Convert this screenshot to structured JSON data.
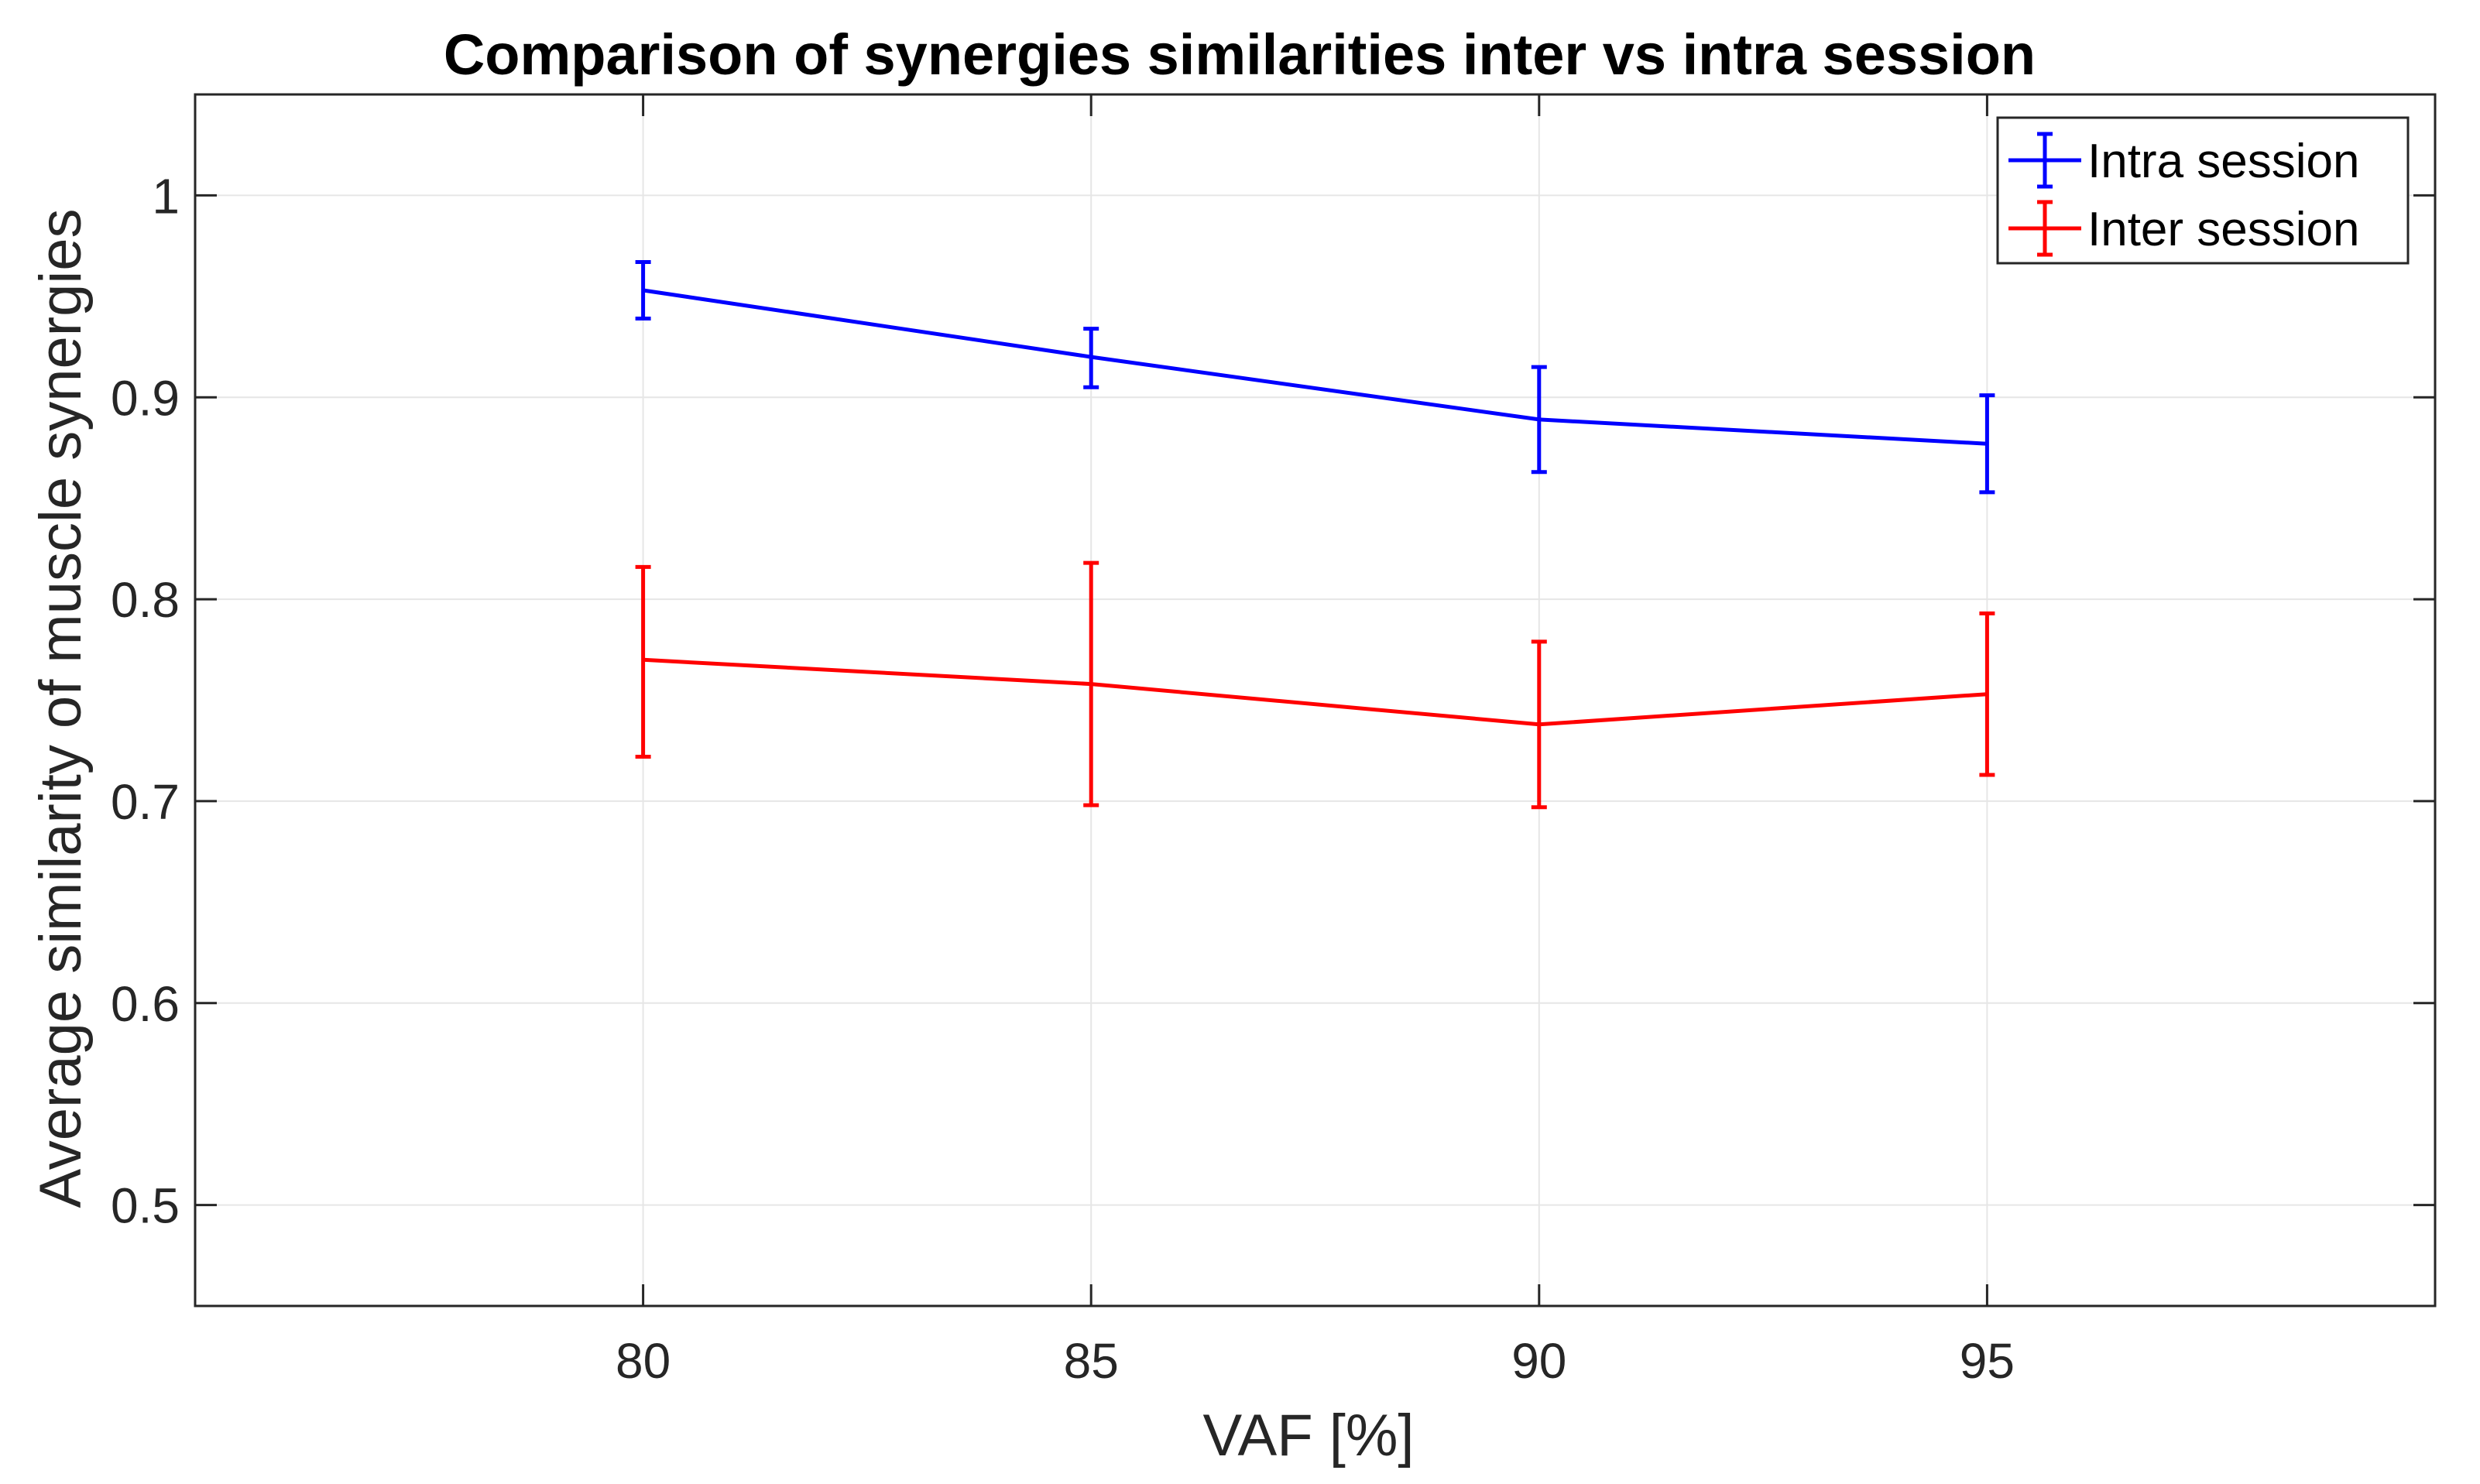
{
  "chart_data": {
    "type": "line",
    "title": "Comparison of synergies similarities inter vs intra session",
    "xlabel": "VAF [%]",
    "ylabel": "Average similarity of muscle synergies",
    "x": [
      80,
      85,
      90,
      95
    ],
    "xlim": [
      75,
      100
    ],
    "ylim": [
      0.45,
      1.05
    ],
    "xticks": [
      80,
      85,
      90,
      95
    ],
    "yticks": [
      0.5,
      0.6,
      0.7,
      0.8,
      0.9,
      1
    ],
    "xtick_labels": [
      "80",
      "85",
      "90",
      "95"
    ],
    "ytick_labels": [
      "0.5",
      "0.6",
      "0.7",
      "0.8",
      "0.9",
      "1"
    ],
    "grid": true,
    "legend_position": "top-right",
    "series": [
      {
        "name": "Intra session",
        "color": "#0000ff",
        "values": [
          0.953,
          0.92,
          0.889,
          0.877
        ],
        "err_low": [
          0.939,
          0.905,
          0.863,
          0.853
        ],
        "err_high": [
          0.967,
          0.934,
          0.915,
          0.901
        ]
      },
      {
        "name": "Inter session",
        "color": "#ff0000",
        "values": [
          0.77,
          0.758,
          0.738,
          0.753
        ],
        "err_low": [
          0.722,
          0.698,
          0.697,
          0.713
        ],
        "err_high": [
          0.816,
          0.818,
          0.779,
          0.793
        ]
      }
    ]
  }
}
